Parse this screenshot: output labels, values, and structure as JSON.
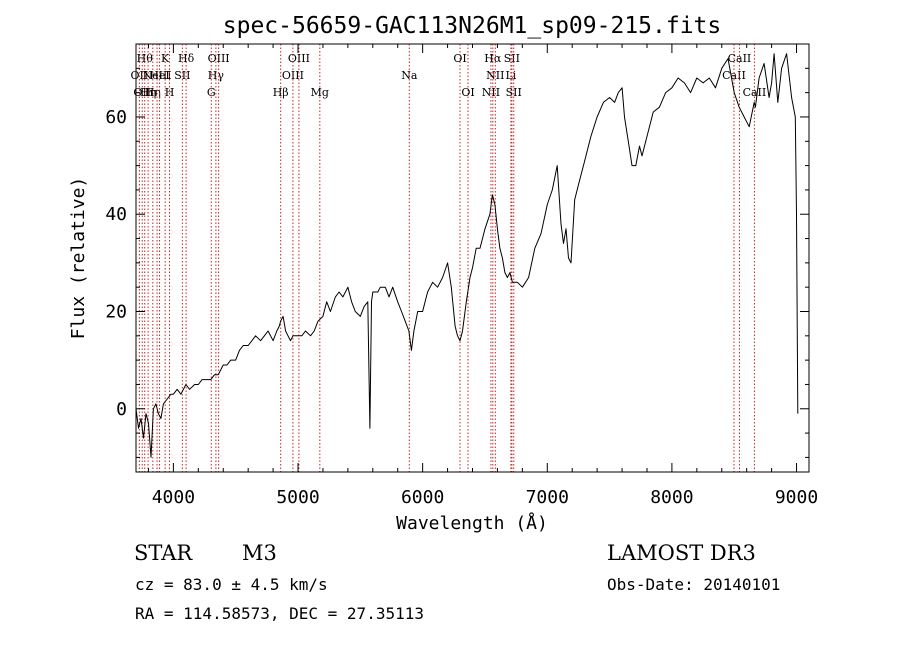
{
  "chart_data": {
    "type": "line",
    "title": "spec-56659-GAC113N26M1_sp09-215.fits",
    "xlabel": "Wavelength (Å)",
    "ylabel": "Flux (relative)",
    "xlim": [
      3700,
      9100
    ],
    "ylim": [
      -13,
      75
    ],
    "xticks": [
      4000,
      5000,
      6000,
      7000,
      8000,
      9000
    ],
    "yticks": [
      0,
      20,
      40,
      60
    ],
    "grid": false,
    "line_color": "#000000",
    "marker_color": "#cc2222",
    "series": [
      {
        "name": "flux",
        "x": [
          3700,
          3720,
          3740,
          3760,
          3780,
          3800,
          3820,
          3840,
          3860,
          3880,
          3900,
          3920,
          3950,
          3980,
          4000,
          4030,
          4060,
          4100,
          4130,
          4170,
          4200,
          4230,
          4260,
          4300,
          4330,
          4360,
          4400,
          4430,
          4460,
          4500,
          4530,
          4560,
          4600,
          4630,
          4660,
          4700,
          4730,
          4760,
          4800,
          4830,
          4850,
          4860,
          4880,
          4900,
          4920,
          4940,
          4960,
          5000,
          5030,
          5060,
          5100,
          5130,
          5160,
          5200,
          5230,
          5260,
          5300,
          5330,
          5360,
          5400,
          5430,
          5460,
          5500,
          5530,
          5560,
          5577,
          5590,
          5600,
          5640,
          5660,
          5700,
          5730,
          5760,
          5800,
          5830,
          5860,
          5890,
          5910,
          5930,
          5960,
          6000,
          6040,
          6080,
          6120,
          6160,
          6200,
          6230,
          6260,
          6280,
          6300,
          6320,
          6350,
          6380,
          6400,
          6430,
          6460,
          6500,
          6540,
          6560,
          6580,
          6600,
          6620,
          6640,
          6660,
          6680,
          6700,
          6720,
          6760,
          6800,
          6850,
          6900,
          6950,
          7000,
          7040,
          7080,
          7110,
          7130,
          7150,
          7170,
          7190,
          7220,
          7250,
          7300,
          7350,
          7400,
          7450,
          7500,
          7540,
          7570,
          7600,
          7620,
          7650,
          7680,
          7710,
          7740,
          7760,
          7800,
          7850,
          7900,
          7950,
          8000,
          8050,
          8100,
          8150,
          8200,
          8250,
          8300,
          8350,
          8400,
          8450,
          8500,
          8540,
          8580,
          8620,
          8660,
          8670,
          8700,
          8740,
          8780,
          8800,
          8820,
          8850,
          8880,
          8920,
          8960,
          8990,
          9000,
          9010
        ],
        "values": [
          0,
          -4,
          -2,
          -6,
          -1,
          -3,
          -10,
          0,
          1,
          -1,
          -2,
          1,
          2,
          3,
          3,
          4,
          3,
          5,
          4,
          5,
          5,
          6,
          6,
          6,
          7,
          7,
          9,
          9,
          10,
          10,
          12,
          13,
          13,
          14,
          15,
          14,
          15,
          16,
          14,
          16,
          17,
          18,
          19,
          16,
          15,
          14,
          15,
          15,
          15,
          16,
          15,
          16,
          18,
          19,
          22,
          20,
          23,
          24,
          23,
          25,
          22,
          20,
          19,
          21,
          22,
          -4,
          22,
          24,
          24,
          25,
          25,
          23,
          25,
          22,
          20,
          18,
          16,
          12,
          16,
          20,
          20,
          24,
          26,
          25,
          27,
          30,
          25,
          17,
          15,
          14,
          16,
          22,
          27,
          29,
          33,
          33,
          37,
          40,
          44,
          42,
          37,
          33,
          31,
          28,
          27,
          28,
          26,
          26,
          25,
          27,
          33,
          36,
          42,
          45,
          50,
          38,
          34,
          37,
          31,
          30,
          43,
          46,
          51,
          56,
          60,
          63,
          64,
          63,
          65,
          66,
          60,
          55,
          50,
          50,
          54,
          52,
          56,
          61,
          62,
          65,
          66,
          68,
          67,
          65,
          68,
          67,
          68,
          66,
          70,
          72,
          65,
          62,
          60,
          58,
          63,
          62,
          68,
          71,
          64,
          67,
          73,
          63,
          70,
          73,
          64,
          60,
          40,
          -1
        ]
      }
    ],
    "line_markers": [
      {
        "wavelength": 3727,
        "label": "OII",
        "row": 2
      },
      {
        "wavelength": 3750,
        "label": "OII",
        "row": 3
      },
      {
        "wavelength": 3770,
        "label": "Hθ",
        "row": 1
      },
      {
        "wavelength": 3797,
        "label": "Hη",
        "row": 3
      },
      {
        "wavelength": 3835,
        "label": "Hη",
        "row": 3
      },
      {
        "wavelength": 3869,
        "label": "NeIII",
        "row": 2
      },
      {
        "wavelength": 3889,
        "label": "HeI",
        "row": 2
      },
      {
        "wavelength": 3934,
        "label": "K",
        "row": 1
      },
      {
        "wavelength": 3969,
        "label": "H",
        "row": 3
      },
      {
        "wavelength": 4072,
        "label": "SII",
        "row": 2
      },
      {
        "wavelength": 4102,
        "label": "Hδ",
        "row": 1
      },
      {
        "wavelength": 4304,
        "label": "G",
        "row": 3
      },
      {
        "wavelength": 4341,
        "label": "Hγ",
        "row": 2
      },
      {
        "wavelength": 4363,
        "label": "OIII",
        "row": 1
      },
      {
        "wavelength": 4861,
        "label": "Hβ",
        "row": 3
      },
      {
        "wavelength": 4959,
        "label": "OIII",
        "row": 2
      },
      {
        "wavelength": 5007,
        "label": "OIII",
        "row": 1
      },
      {
        "wavelength": 5175,
        "label": "Mg",
        "row": 3
      },
      {
        "wavelength": 5893,
        "label": "Na",
        "row": 2
      },
      {
        "wavelength": 6300,
        "label": "OI",
        "row": 1
      },
      {
        "wavelength": 6364,
        "label": "OI",
        "row": 3
      },
      {
        "wavelength": 6548,
        "label": "NII",
        "row": 3
      },
      {
        "wavelength": 6563,
        "label": "Hα",
        "row": 1
      },
      {
        "wavelength": 6583,
        "label": "NII",
        "row": 2
      },
      {
        "wavelength": 6708,
        "label": "Li",
        "row": 2
      },
      {
        "wavelength": 6716,
        "label": "SII",
        "row": 1
      },
      {
        "wavelength": 6731,
        "label": "SII",
        "row": 3
      },
      {
        "wavelength": 8498,
        "label": "CaII",
        "row": 2
      },
      {
        "wavelength": 8542,
        "label": "CaII",
        "row": 1
      },
      {
        "wavelength": 8662,
        "label": "CaII",
        "row": 3
      }
    ]
  },
  "info": {
    "object_class": "STAR",
    "subclass": "M3",
    "survey": "LAMOST DR3",
    "redshift_line": "cz = 83.0 ± 4.5 km/s",
    "obs_date_line": "Obs-Date: 20140101",
    "coords_line": "RA = 114.58573, DEC =  27.35113"
  }
}
